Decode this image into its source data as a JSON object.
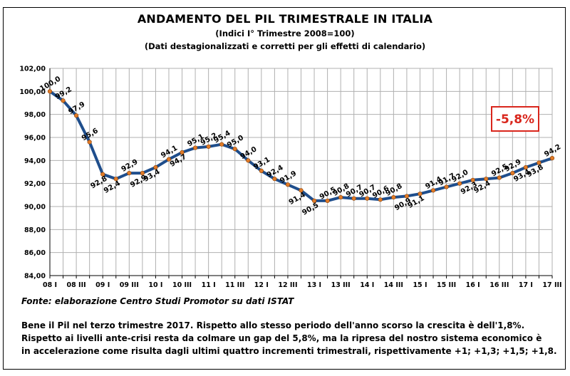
{
  "chart_data": {
    "type": "line",
    "title": "ANDAMENTO DEL PIL TRIMESTRALE IN ITALIA",
    "subtitle1": "(Indici I° Trimestre 2008=100)",
    "subtitle2": "(Dati destagionalizzati e corretti per gli effetti di calendario)",
    "ylim": [
      84,
      102
    ],
    "yticks": [
      "84,00",
      "86,00",
      "88,00",
      "90,00",
      "92,00",
      "94,00",
      "96,00",
      "98,00",
      "100,00",
      "102,00"
    ],
    "grid": true,
    "categories": [
      "08 I",
      "",
      "08 III",
      "",
      "09 I",
      "",
      "09 III",
      "",
      "10 I",
      "",
      "10 III",
      "",
      "11 I",
      "",
      "11 III",
      "",
      "12 I",
      "",
      "12 III",
      "",
      "13 I",
      "",
      "13 III",
      "",
      "14 I",
      "",
      "14 III",
      "",
      "15 I",
      "",
      "15 III",
      "",
      "16 I",
      "",
      "16 III",
      "",
      "17 I",
      "",
      "17 III"
    ],
    "values": [
      100.0,
      99.2,
      97.9,
      95.6,
      92.8,
      92.4,
      92.9,
      92.9,
      93.4,
      94.1,
      94.7,
      95.1,
      95.2,
      95.4,
      95.0,
      94.0,
      93.1,
      92.4,
      91.9,
      91.4,
      90.5,
      90.5,
      90.8,
      90.7,
      90.7,
      90.6,
      90.8,
      90.9,
      91.1,
      91.4,
      91.7,
      92.0,
      92.3,
      92.4,
      92.5,
      92.9,
      93.4,
      93.8,
      94.2
    ],
    "data_labels": [
      "100,0",
      "99,2",
      "97,9",
      "95,6",
      "92,8",
      "92,4",
      "92,9",
      "92,9",
      "93,4",
      "94,1",
      "94,7",
      "95,1",
      "95,2",
      "95,4",
      "95,0",
      "94,0",
      "93,1",
      "92,4",
      "91,9",
      "91,4",
      "90,5",
      "90,5",
      "90,8",
      "90,7",
      "90,7",
      "90,6",
      "90,8",
      "90,9",
      "91,1",
      "91,4",
      "91,7",
      "92,0",
      "92,3",
      "92,4",
      "92,5",
      "92,9",
      "93,4",
      "93,8",
      "94,2"
    ],
    "label_side": [
      "above",
      "above",
      "above",
      "above",
      "below",
      "below",
      "above",
      "below",
      "below",
      "above",
      "below",
      "above",
      "above",
      "above",
      "above",
      "above",
      "above",
      "above",
      "above",
      "below",
      "below",
      "above",
      "above",
      "above",
      "above",
      "above",
      "above",
      "below",
      "below",
      "above",
      "above",
      "above",
      "below",
      "below",
      "above",
      "above",
      "below",
      "below",
      "above"
    ],
    "annotation": "-5,8%",
    "colors": {
      "line": "#1f4e8c",
      "marker": "#e07b28",
      "annotation": "#d9261c",
      "grid": "#b0b0b0"
    }
  },
  "source": "Fonte: elaborazione Centro Studi Promotor su dati ISTAT",
  "note": [
    "Bene il Pil nel terzo trimestre 2017. Rispetto allo stesso periodo dell'anno scorso la crescita è dell'1,8%.",
    "Rispetto ai livelli ante-crisi resta da colmare un gap del 5,8%, ma la ripresa del nostro sistema economico è",
    "in accelerazione come risulta dagli ultimi quattro incrementi trimestrali, rispettivamente +1; +1,3; +1,5; +1,8."
  ]
}
